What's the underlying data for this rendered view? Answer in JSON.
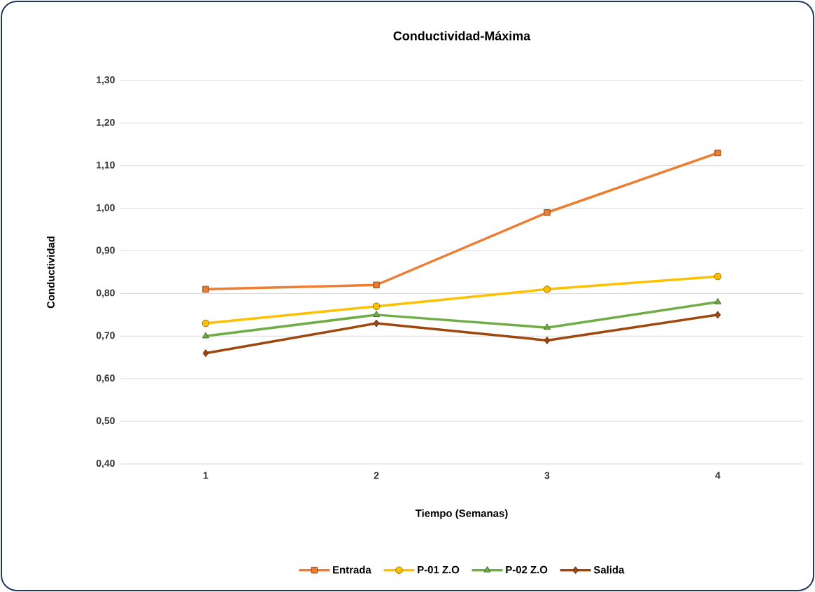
{
  "chart_data": {
    "type": "line",
    "title": "Conductividad-Máxima",
    "xlabel": "Tiempo (Semanas)",
    "ylabel": "Conductividad",
    "categories": [
      "1",
      "2",
      "3",
      "4"
    ],
    "series": [
      {
        "name": "Entrada",
        "color": "#ed7d31",
        "marker": "square",
        "values": [
          0.81,
          0.82,
          0.99,
          1.13
        ]
      },
      {
        "name": "P-01 Z.O",
        "color": "#ffc000",
        "marker": "circle",
        "values": [
          0.73,
          0.77,
          0.81,
          0.84
        ]
      },
      {
        "name": "P-02 Z.O",
        "color": "#70ad47",
        "marker": "triangle",
        "values": [
          0.7,
          0.75,
          0.72,
          0.78
        ]
      },
      {
        "name": "Salida",
        "color": "#9e480e",
        "marker": "diamond",
        "values": [
          0.66,
          0.73,
          0.69,
          0.75
        ]
      }
    ],
    "ylim": [
      0.4,
      1.3
    ],
    "yticks": [
      {
        "value": 0.4,
        "label": "0,40"
      },
      {
        "value": 0.5,
        "label": "0,50"
      },
      {
        "value": 0.6,
        "label": "0,60"
      },
      {
        "value": 0.7,
        "label": "0,70"
      },
      {
        "value": 0.8,
        "label": "0,80"
      },
      {
        "value": 0.9,
        "label": "0,90"
      },
      {
        "value": 1.0,
        "label": "1,00"
      },
      {
        "value": 1.1,
        "label": "1,10"
      },
      {
        "value": 1.2,
        "label": "1,20"
      },
      {
        "value": 1.3,
        "label": "1,30"
      }
    ],
    "grid": "y",
    "legend": "bottom",
    "line_style": "solid"
  }
}
